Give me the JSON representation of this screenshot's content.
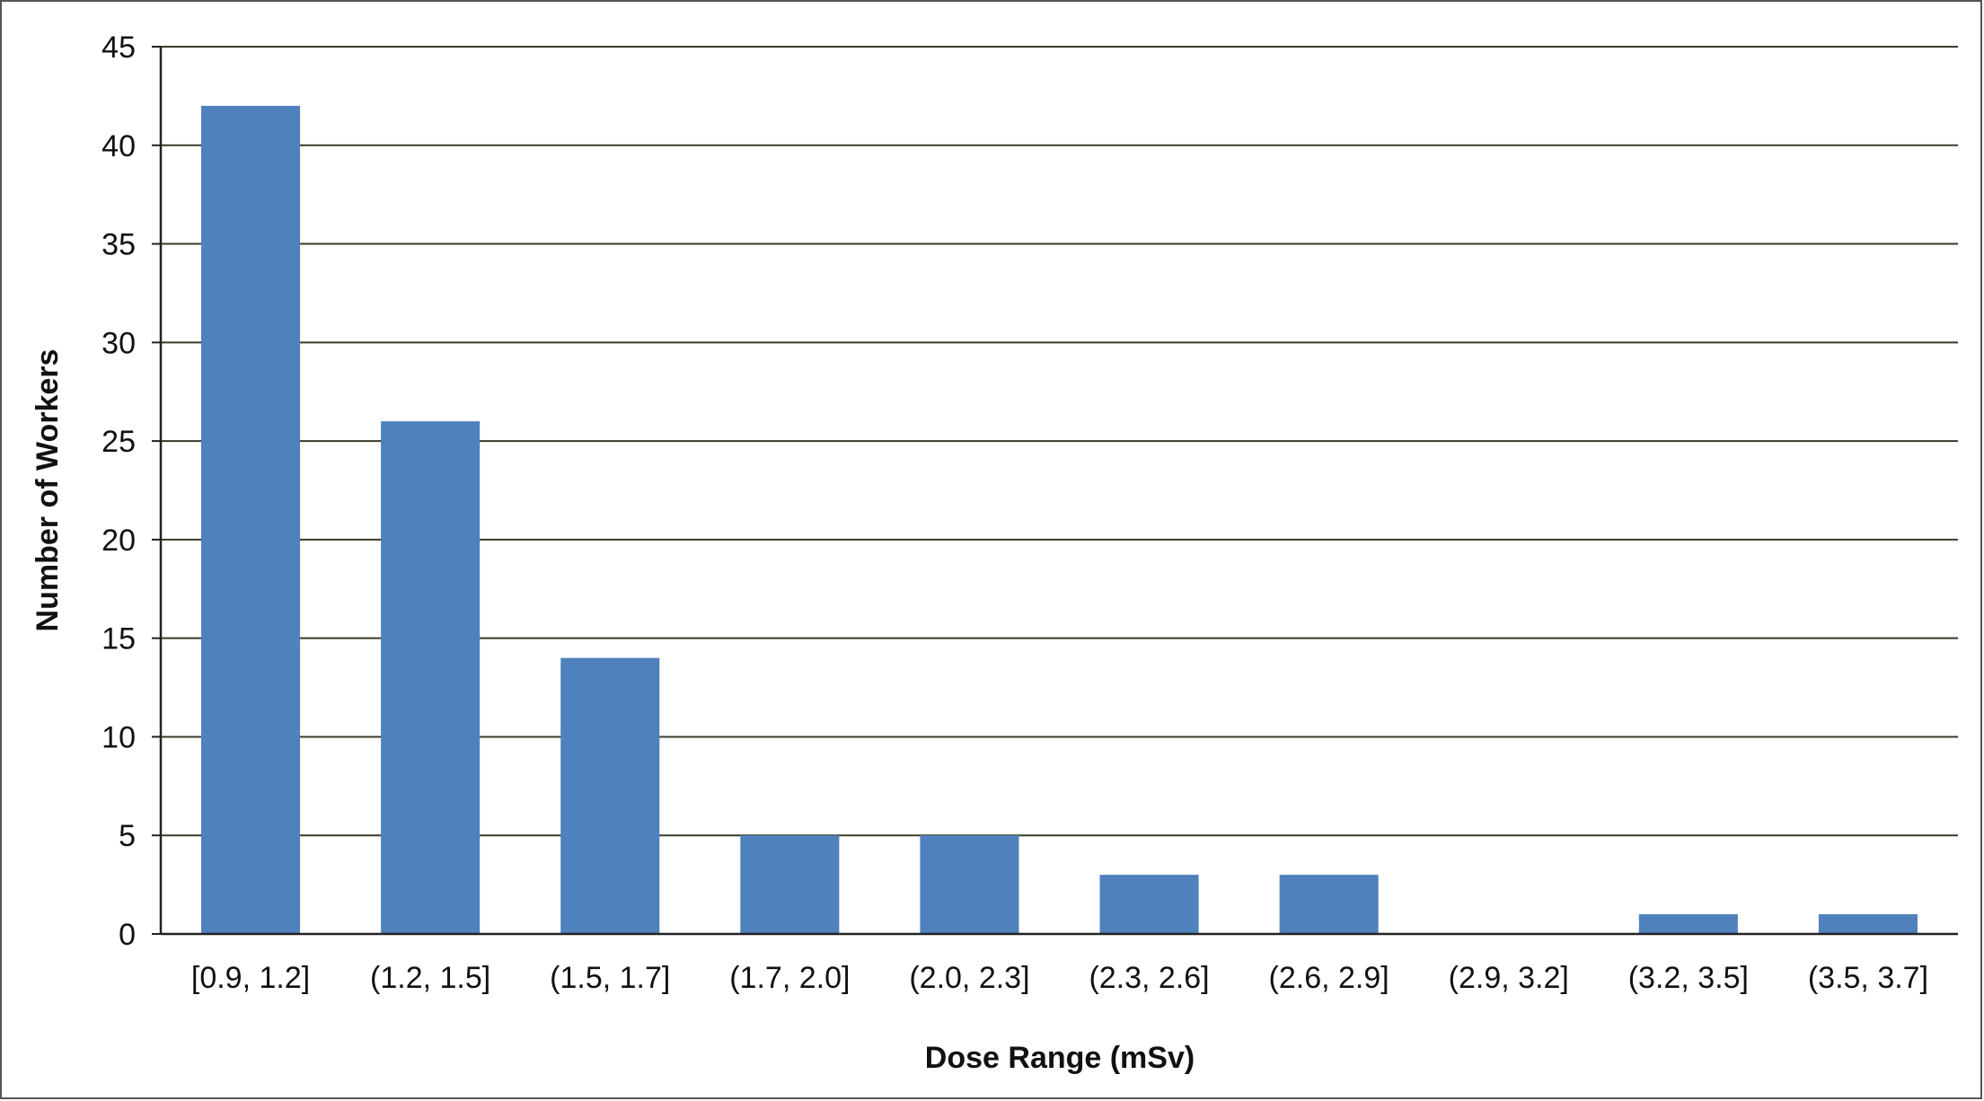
{
  "chart_data": {
    "type": "bar",
    "title": "",
    "xlabel": "Dose Range (mSv)",
    "ylabel": "Number of Workers",
    "categories": [
      "[0.9, 1.2]",
      "(1.2, 1.5]",
      "(1.5, 1.7]",
      "(1.7, 2.0]",
      "(2.0, 2.3]",
      "(2.3, 2.6]",
      "(2.6, 2.9]",
      "(2.9, 3.2]",
      "(3.2, 3.5]",
      "(3.5, 3.7]"
    ],
    "values": [
      42,
      26,
      14,
      5,
      5,
      3,
      3,
      0,
      1,
      1
    ],
    "ylim": [
      0,
      45
    ],
    "yticks": [
      "0",
      "5",
      "10",
      "15",
      "20",
      "25",
      "30",
      "35",
      "40",
      "45"
    ],
    "grid": true,
    "legend": "none",
    "bar_color": "#4f81bd",
    "grid_color": "#3a3a2a"
  }
}
